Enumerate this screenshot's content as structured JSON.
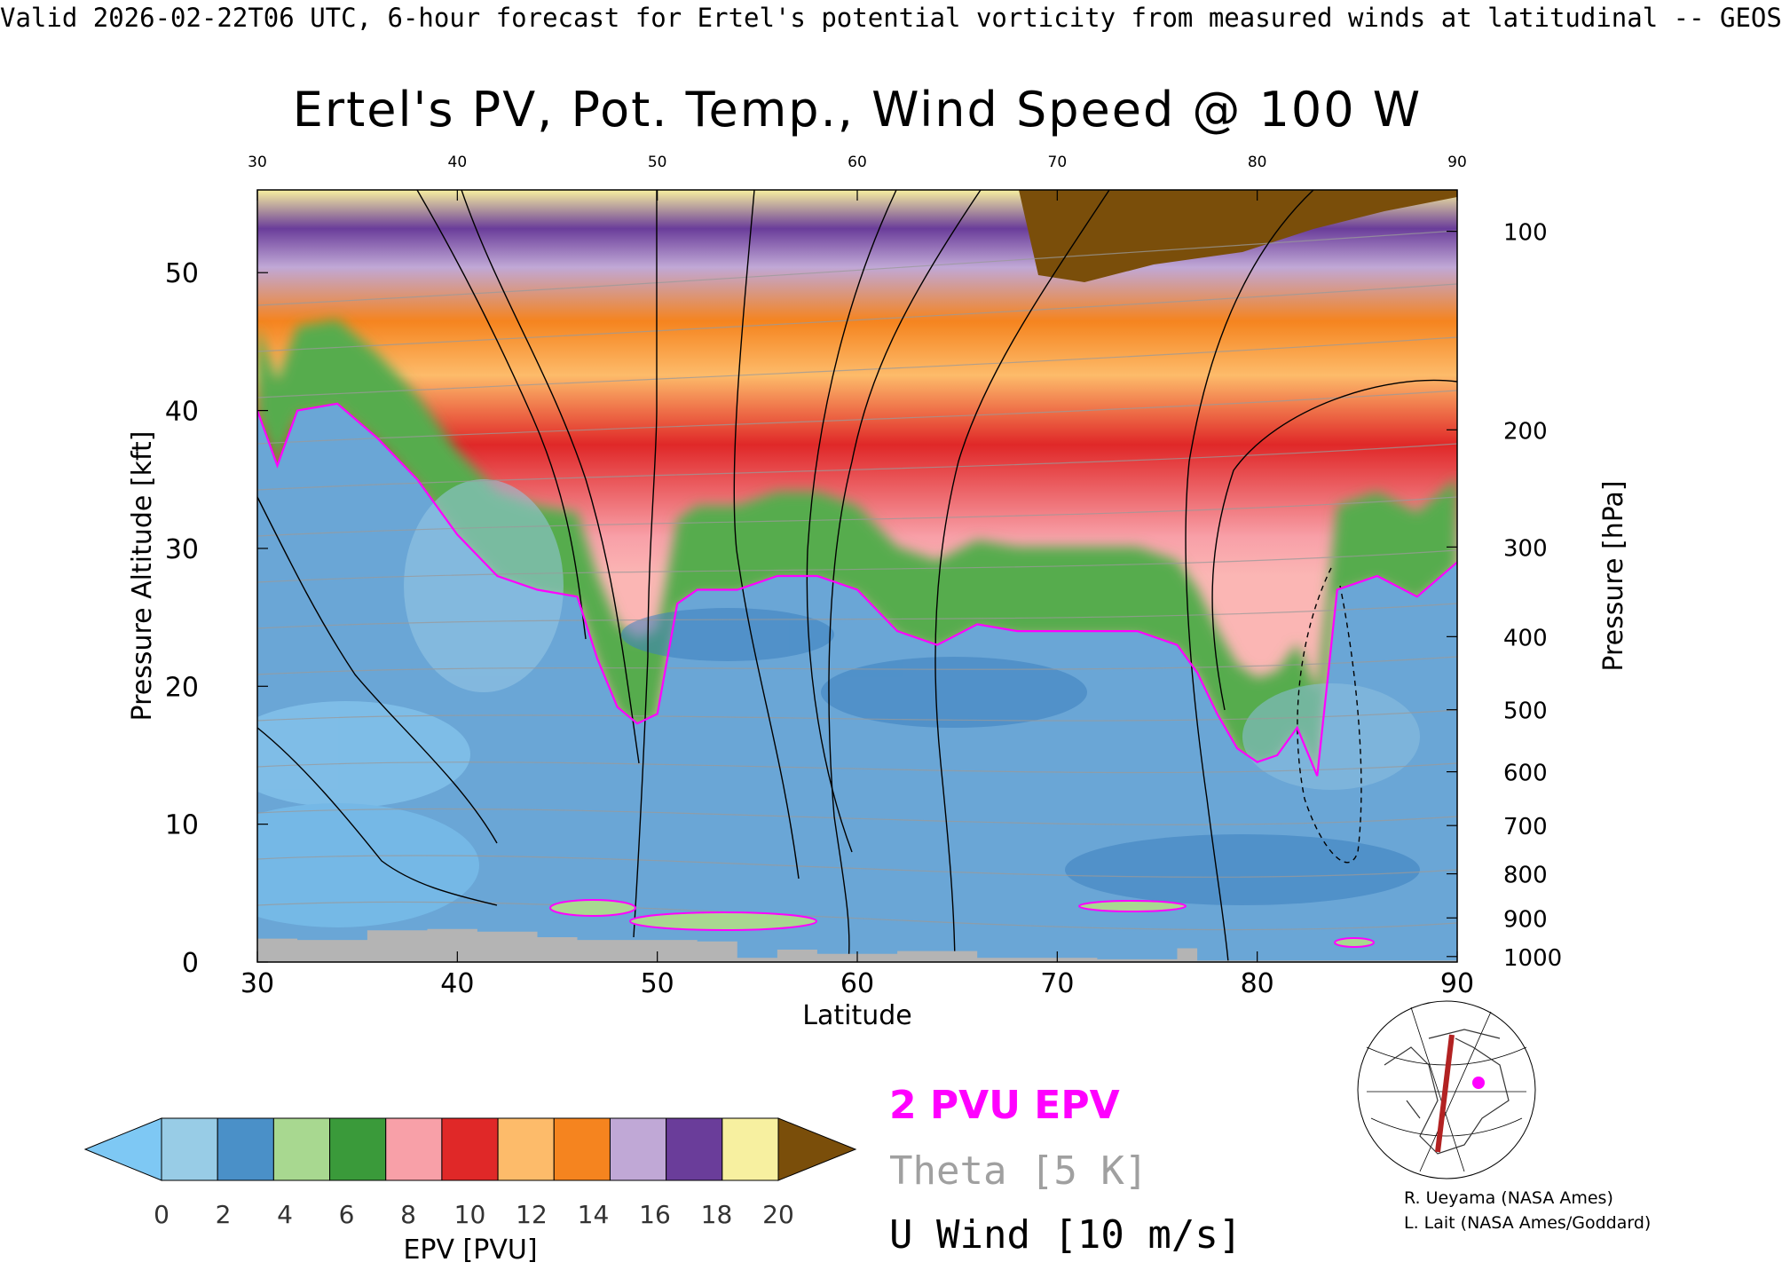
{
  "header_line": "Valid 2026-02-22T06 UTC, 6-hour forecast for Ertel's potential vorticity from measured winds at latitudinal -- GEOS",
  "chart_data": {
    "type": "heatmap",
    "title": "Ertel's PV, Pot. Temp., Wind Speed @ 100 W",
    "xlabel": "Latitude",
    "ylabel": "Pressure Altitude [kft]",
    "ylabel_right": "Pressure [hPa]",
    "xlim": [
      30,
      90
    ],
    "ylim": [
      0,
      56
    ],
    "x_ticks": [
      "30",
      "40",
      "50",
      "60",
      "70",
      "80",
      "90"
    ],
    "y_ticks": [
      "0",
      "10",
      "20",
      "30",
      "40",
      "50"
    ],
    "y_ticks_values": [
      0,
      10,
      20,
      30,
      40,
      50
    ],
    "pressure_ticks": [
      "100",
      "200",
      "300",
      "400",
      "500",
      "600",
      "700",
      "800",
      "900",
      "1000"
    ],
    "pressure_ticks_kft": [
      53,
      38.6,
      30.1,
      23.6,
      18.3,
      13.8,
      9.9,
      6.4,
      3.2,
      0.4
    ],
    "colorbar": {
      "label": "EPV [PVU]",
      "ticks": [
        "0",
        "2",
        "4",
        "6",
        "8",
        "10",
        "12",
        "14",
        "16",
        "18",
        "20"
      ],
      "low_extend_color": "#7ec8f4",
      "high_extend_color": "#7a4e0a",
      "colors": [
        "#98cce6",
        "#4a90c8",
        "#a8d890",
        "#3a9a3a",
        "#f8a0a8",
        "#e02828",
        "#fdbb6a",
        "#f5841f",
        "#c0a8d6",
        "#6a3d9a",
        "#f7f0a0"
      ]
    },
    "legend": [
      {
        "label": "2 PVU EPV",
        "color": "#ff00ff"
      },
      {
        "label": "Theta [5 K]",
        "color": "#a0a0a0"
      },
      {
        "label": "U Wind [10 m/s]",
        "color": "#000000"
      }
    ],
    "tropopause_2pvu_kft": {
      "lat": [
        30,
        31,
        32,
        34,
        36,
        38,
        40,
        42,
        44,
        46,
        47,
        48,
        49,
        50,
        51,
        52,
        54,
        56,
        58,
        60,
        62,
        64,
        66,
        68,
        70,
        72,
        74,
        76,
        77,
        78,
        79,
        80,
        81,
        82,
        83,
        84,
        86,
        88,
        90
      ],
      "kft": [
        40,
        36,
        40,
        40.5,
        38,
        35,
        31,
        28,
        27,
        26.5,
        22,
        18.5,
        17.3,
        18,
        26,
        27,
        27,
        28,
        28,
        27,
        24,
        23,
        24.5,
        24,
        24,
        24,
        24,
        23,
        21,
        18,
        15.5,
        14.5,
        15,
        17,
        13.5,
        27,
        28,
        26.5,
        29
      ]
    },
    "theta_levels_K": [
      290,
      300,
      310,
      320,
      330,
      340,
      350,
      360,
      370,
      380,
      390,
      400,
      410,
      420
    ],
    "u_wind_contours_m_s": [
      0,
      10,
      30,
      50
    ],
    "terrain_kft": {
      "lat": [
        30,
        32,
        35.5,
        38.5,
        41,
        44,
        46,
        52,
        54,
        56,
        58,
        62,
        66,
        72,
        76,
        77,
        90
      ],
      "kft": [
        1.7,
        1.6,
        2.3,
        2.4,
        2.2,
        1.8,
        1.6,
        1.5,
        0.3,
        0.9,
        0.6,
        0.8,
        0.3,
        0.2,
        1.0,
        0.1,
        0.1
      ]
    },
    "credits": [
      "R. Ueyama (NASA Ames)",
      "L. Lait (NASA Ames/Goddard)"
    ]
  }
}
